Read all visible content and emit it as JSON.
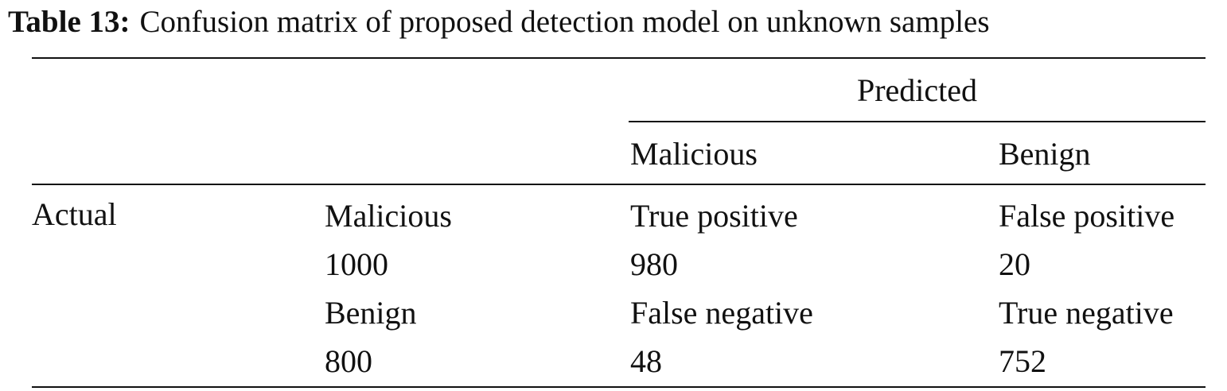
{
  "caption": {
    "label": "Table 13:",
    "text": "Confusion matrix of proposed detection model on unknown samples"
  },
  "table": {
    "group_header": "Predicted",
    "columns": [
      "Malicious",
      "Benign"
    ],
    "row_group": "Actual",
    "rows": [
      [
        "Malicious",
        "True positive",
        "False positive"
      ],
      [
        1000,
        980,
        20
      ],
      [
        "Benign",
        "False negative",
        "True negative"
      ],
      [
        800,
        48,
        752
      ]
    ]
  }
}
